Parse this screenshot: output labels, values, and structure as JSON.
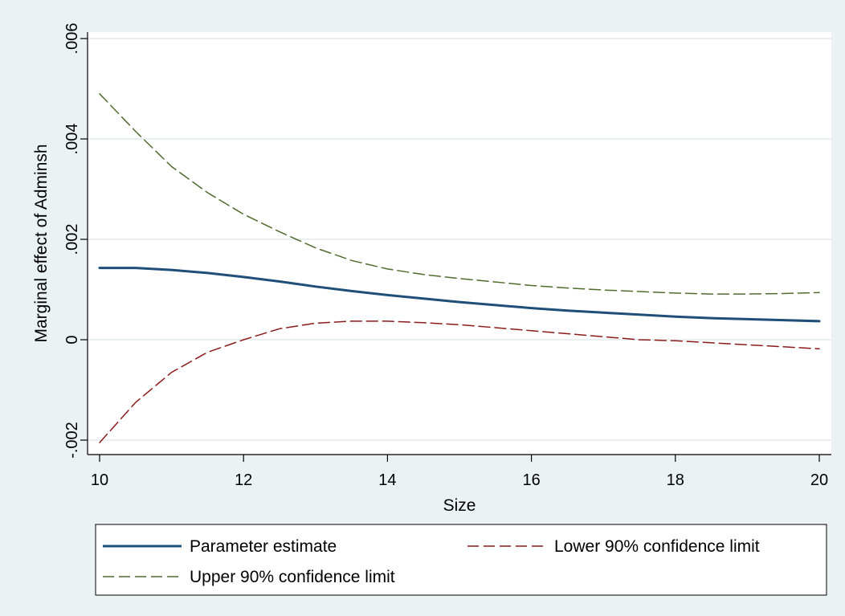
{
  "chart_data": {
    "type": "line",
    "xlabel": "Size",
    "ylabel": "Marginal effect of Adminsh",
    "xlim": [
      10,
      20
    ],
    "ylim": [
      -0.002,
      0.006
    ],
    "xticks": [
      10,
      12,
      14,
      16,
      18,
      20
    ],
    "xtick_labels": [
      "10",
      "12",
      "14",
      "16",
      "18",
      "20"
    ],
    "yticks": [
      -0.002,
      0,
      0.002,
      0.004,
      0.006
    ],
    "ytick_labels": [
      "-.002",
      "0",
      ".002",
      ".004",
      ".006"
    ],
    "grid": true,
    "legend_position": "bottom",
    "series": [
      {
        "name": "Parameter estimate",
        "color": "#1f4e79",
        "dash": "solid",
        "x": [
          10,
          10.5,
          11,
          11.5,
          12,
          12.5,
          13,
          13.5,
          14,
          14.5,
          15,
          15.5,
          16,
          16.5,
          17,
          17.5,
          18,
          18.5,
          19,
          19.5,
          20
        ],
        "y": [
          0.00143,
          0.00143,
          0.00139,
          0.00133,
          0.00125,
          0.00116,
          0.00106,
          0.00097,
          0.00089,
          0.00082,
          0.00075,
          0.00069,
          0.00063,
          0.00058,
          0.00054,
          0.0005,
          0.00046,
          0.00043,
          0.00041,
          0.00039,
          0.00037
        ]
      },
      {
        "name": "Lower 90% confidence limit",
        "color": "#8b1a1a",
        "dash": "dashed",
        "x": [
          10,
          10.5,
          11,
          11.5,
          12,
          12.5,
          13,
          13.5,
          14,
          14.5,
          15,
          15.5,
          16,
          16.5,
          17,
          17.5,
          18,
          18.5,
          19,
          19.5,
          20
        ],
        "y": [
          -0.00205,
          -0.00125,
          -0.00065,
          -0.00025,
          0.0,
          0.00022,
          0.00033,
          0.00037,
          0.00037,
          0.00034,
          0.0003,
          0.00024,
          0.00018,
          0.00012,
          6e-05,
          0.0,
          -2e-05,
          -6e-05,
          -0.0001,
          -0.00014,
          -0.00018
        ]
      },
      {
        "name": "Upper 90% confidence limit",
        "color": "#4f6b2e",
        "dash": "dashed",
        "x": [
          10,
          10.5,
          11,
          11.5,
          12,
          12.5,
          13,
          13.5,
          14,
          14.5,
          15,
          15.5,
          16,
          16.5,
          17,
          17.5,
          18,
          18.5,
          19,
          19.5,
          20
        ],
        "y": [
          0.0049,
          0.00415,
          0.00345,
          0.00293,
          0.0025,
          0.00215,
          0.00183,
          0.00158,
          0.00141,
          0.0013,
          0.00122,
          0.00115,
          0.00108,
          0.00103,
          0.00099,
          0.00096,
          0.00093,
          0.00091,
          0.00091,
          0.00092,
          0.00094
        ]
      }
    ]
  }
}
